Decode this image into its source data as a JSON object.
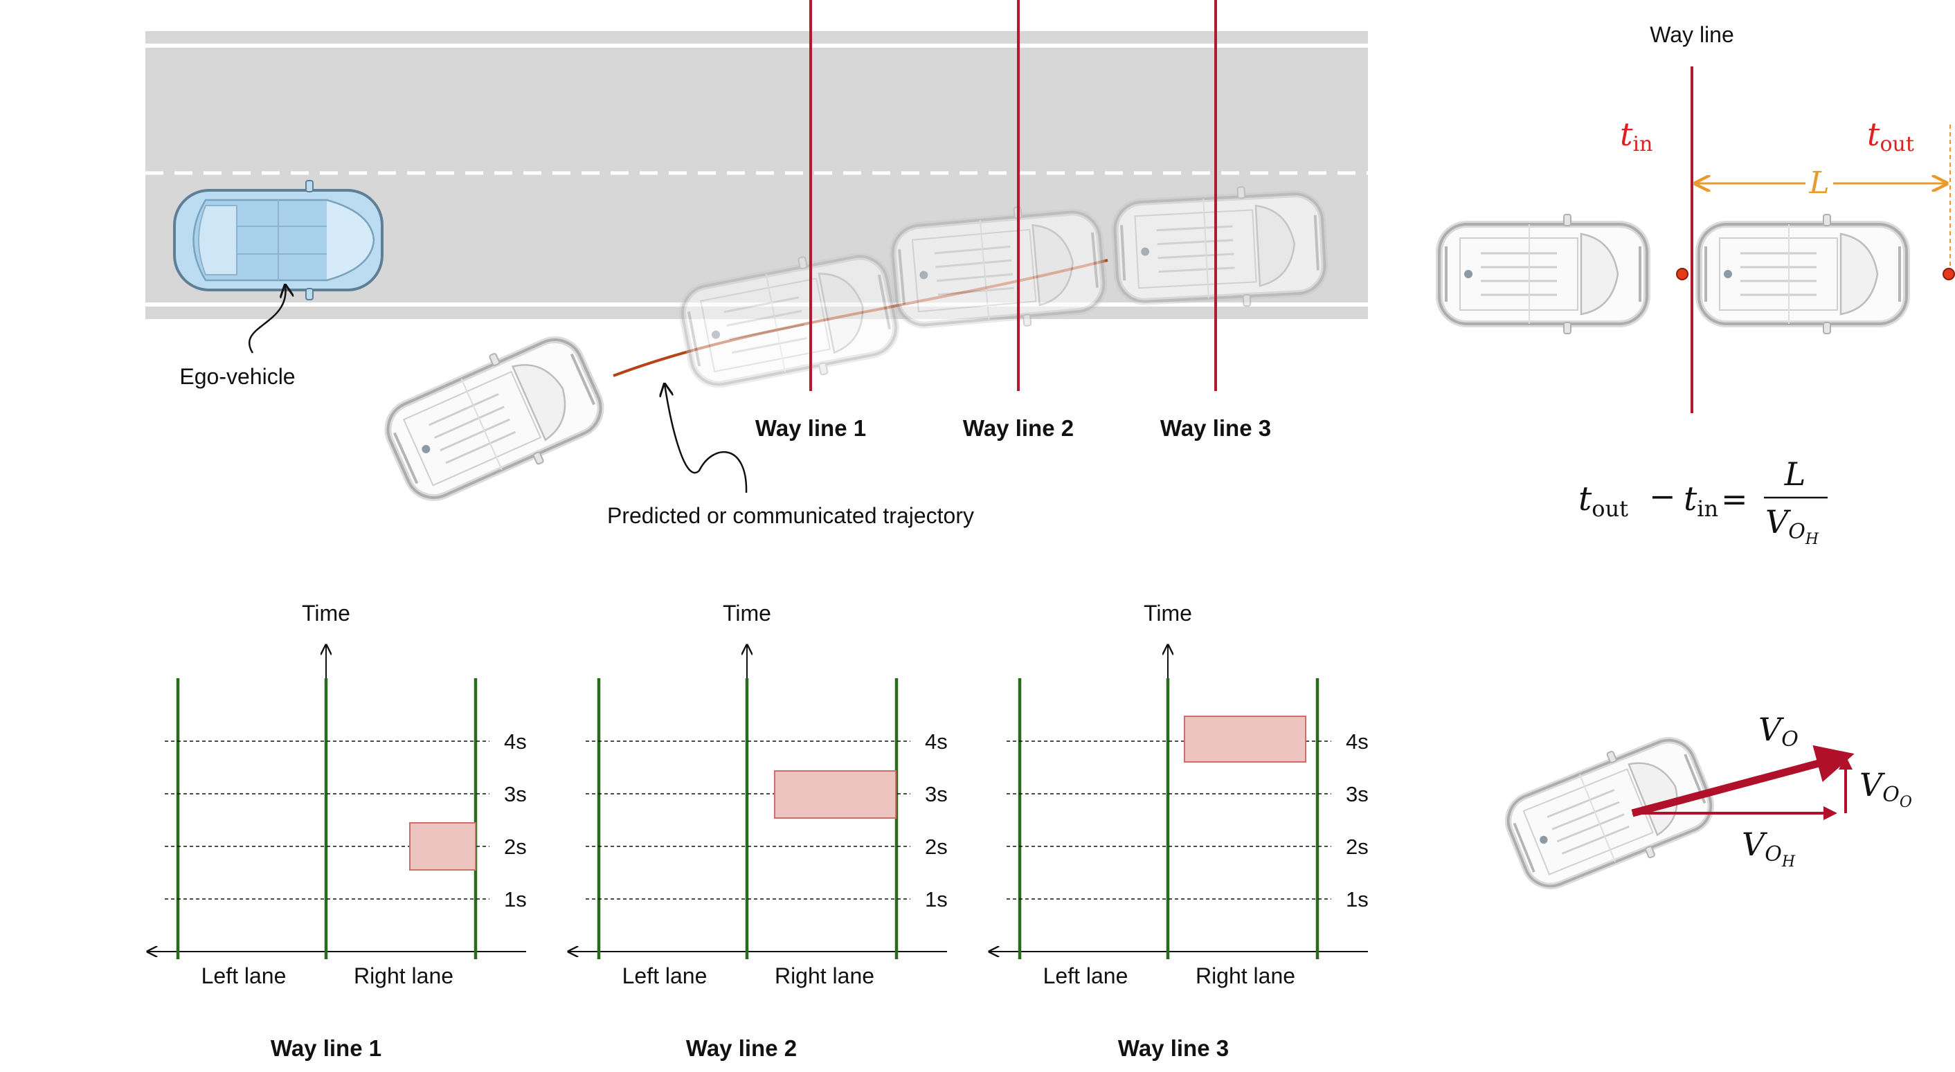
{
  "top_scene": {
    "ego_label": "Ego-vehicle",
    "trajectory_label": "Predicted or communicated trajectory",
    "way_lines": [
      "Way line 1",
      "Way line 2",
      "Way line 3"
    ]
  },
  "way_line_detail": {
    "title": "Way line",
    "t_in": "t",
    "t_in_sub": "in",
    "t_out": "t",
    "t_out_sub": "out",
    "length": "L",
    "eq_t": "t",
    "eq_out": "out",
    "eq_minus": "−",
    "eq_in": "in",
    "eq_equals": "=",
    "eq_num": "L",
    "eq_den_v": "V",
    "eq_den_o": "O",
    "eq_den_h": "H"
  },
  "velocity": {
    "v": "V",
    "o": "O",
    "oo_o": "O",
    "oh_h": "H"
  },
  "timelines": [
    {
      "axis_label": "Time",
      "ticks": [
        "4s",
        "3s",
        "2s",
        "1s"
      ],
      "left_lane": "Left lane",
      "right_lane": "Right lane",
      "title": "Way line 1",
      "occupied": {
        "lane": "Right lane",
        "t_start": 1.6,
        "t_end": 2.5
      }
    },
    {
      "axis_label": "Time",
      "ticks": [
        "4s",
        "3s",
        "2s",
        "1s"
      ],
      "left_lane": "Left lane",
      "right_lane": "Right lane",
      "title": "Way line 2",
      "occupied": {
        "lane": "Right lane",
        "t_start": 2.6,
        "t_end": 3.4
      }
    },
    {
      "axis_label": "Time",
      "ticks": [
        "4s",
        "3s",
        "2s",
        "1s"
      ],
      "left_lane": "Left lane",
      "right_lane": "Right lane",
      "title": "Way line 3",
      "occupied": {
        "lane": "Right lane",
        "t_start": 3.7,
        "t_end": 4.5
      }
    }
  ],
  "colors": {
    "road": "#d7d7d7",
    "way_line": "#b01c2e",
    "trajectory": "#b5441a",
    "lane_green": "#2a6a1f",
    "occupied_fill": "#eec4c0",
    "occupied_stroke": "#c9706a",
    "orange": "#e89a2c",
    "timing_red": "#e02020",
    "velocity_red": "#b0102a",
    "ego_blue": "#a9d1ec"
  }
}
